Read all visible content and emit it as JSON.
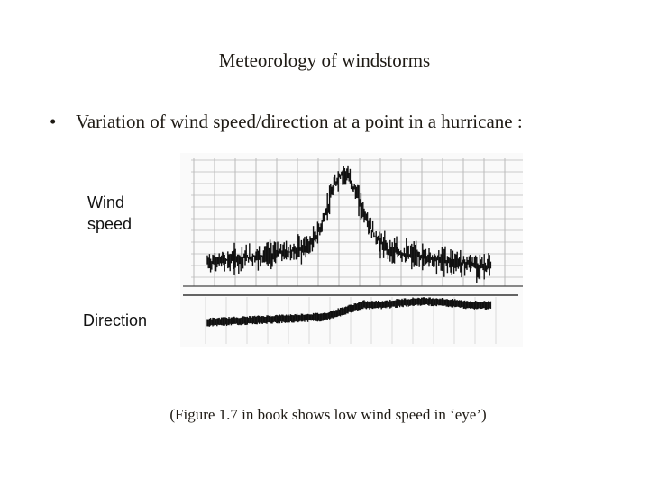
{
  "slide": {
    "title": "Meteorology of windstorms",
    "bullet": "Variation of wind speed/direction at a point in a hurricane :",
    "figure": {
      "wind_speed_label": [
        "Wind",
        "speed"
      ],
      "direction_label": "Direction"
    },
    "caption": "(Figure 1.7 in book shows low wind speed in ‘eye’)"
  }
}
